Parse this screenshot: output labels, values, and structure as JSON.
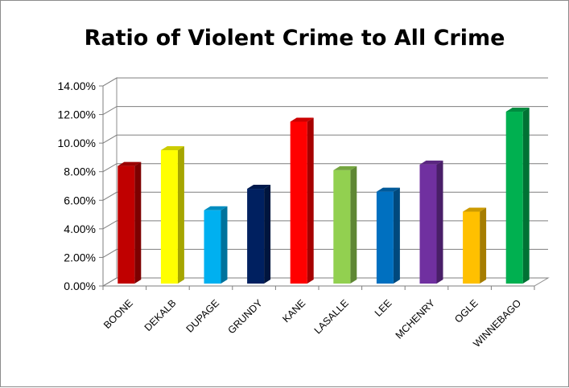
{
  "chart_data": {
    "type": "bar",
    "title": "Ratio of Violent Crime to All Crime",
    "xlabel": "",
    "ylabel": "",
    "ylim": [
      0,
      0.14
    ],
    "y_ticks": [
      "0.00%",
      "2.00%",
      "4.00%",
      "6.00%",
      "8.00%",
      "10.00%",
      "12.00%",
      "14.00%"
    ],
    "y_tick_values": [
      0,
      0.02,
      0.04,
      0.06,
      0.08,
      0.1,
      0.12,
      0.14
    ],
    "categories": [
      "BOONE",
      "DEKALB",
      "DUPAGE",
      "GRUNDY",
      "KANE",
      "LASALLE",
      "LEE",
      "MCHENRY",
      "OGLE",
      "WINNEBAGO"
    ],
    "values": [
      0.084,
      0.095,
      0.053,
      0.068,
      0.115,
      0.081,
      0.066,
      0.085,
      0.052,
      0.122
    ],
    "colors": [
      "#c00000",
      "#ffff00",
      "#00b0f0",
      "#002060",
      "#ff0000",
      "#92d050",
      "#0070c0",
      "#7030a0",
      "#ffc000",
      "#00b050"
    ],
    "grid": true,
    "legend": "none",
    "style": "3d-column"
  }
}
